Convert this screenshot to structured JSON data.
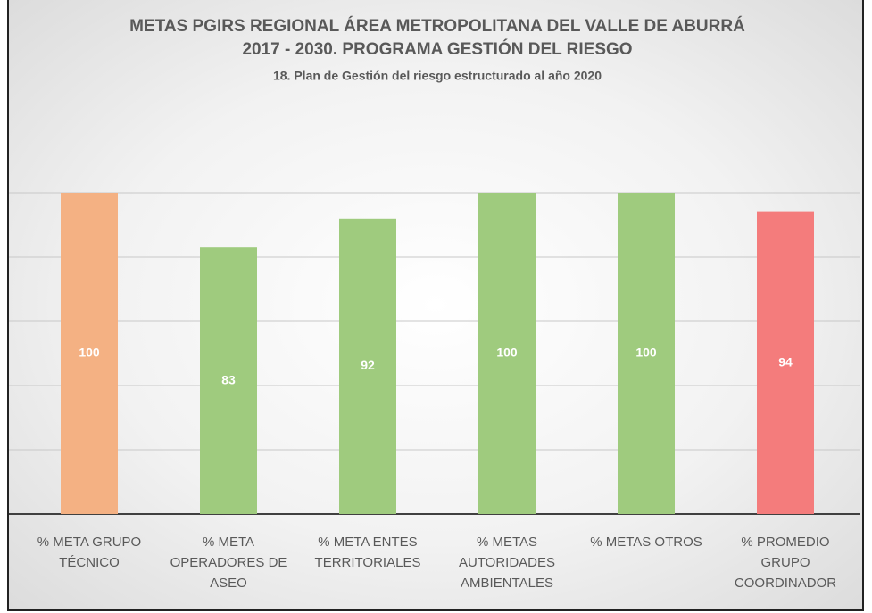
{
  "chart_data": {
    "type": "bar",
    "title": [
      "METAS PGIRS REGIONAL ÁREA METROPOLITANA DEL VALLE DE ABURRÁ",
      "2017 - 2030. PROGRAMA GESTIÓN DEL RIESGO"
    ],
    "subtitle": "18. Plan de Gestión del riesgo estructurado al año 2020",
    "categories": [
      "% META GRUPO TÉCNICO",
      "% META OPERADORES DE ASEO",
      "% META ENTES TERRITORIALES",
      "% METAS AUTORIDADES AMBIENTALES",
      "% METAS OTROS",
      "% PROMEDIO GRUPO COORDINADOR"
    ],
    "values": [
      100,
      83,
      92,
      100,
      100,
      94
    ],
    "colors": [
      "#f4b183",
      "#9fcb7e",
      "#9fcb7e",
      "#9fcb7e",
      "#9fcb7e",
      "#f47c7c"
    ],
    "ylim": [
      0,
      120
    ],
    "yticks": [
      0,
      20,
      40,
      60,
      80,
      100
    ],
    "grid": true
  }
}
